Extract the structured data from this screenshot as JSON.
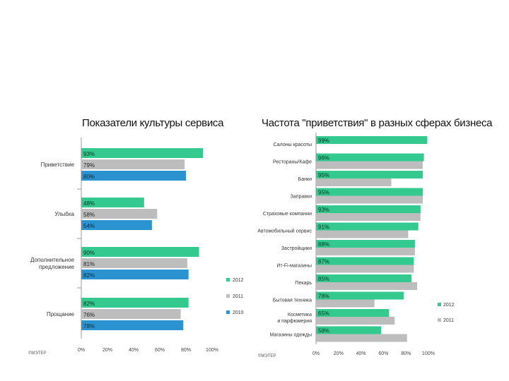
{
  "chart_data": [
    {
      "type": "bar",
      "orientation": "horizontal",
      "title": "Показатели культуры сервиса",
      "categories": [
        "Приветствие",
        "Улыбка",
        "Дополнительное предложение",
        "Прощание"
      ],
      "series": [
        {
          "name": "2012",
          "color": "#33c98f",
          "values": [
            93,
            48,
            90,
            82
          ]
        },
        {
          "name": "2011",
          "color": "#bdbdbd",
          "values": [
            79,
            58,
            81,
            76
          ]
        },
        {
          "name": "2010",
          "color": "#2b93cf",
          "values": [
            80,
            54,
            82,
            78
          ]
        }
      ],
      "value_labels": [
        [
          "93%",
          "48%",
          "90%",
          "82%"
        ],
        [
          "79%",
          "58%",
          "81%",
          "76%"
        ],
        [
          "80%",
          "54%",
          "82%",
          "78%"
        ]
      ],
      "xlim": [
        0,
        100
      ],
      "xticks": [
        "0%",
        "20%",
        "40%",
        "60%",
        "80%",
        "100%"
      ],
      "legend_position": "right",
      "grid": false,
      "source": "©МЭТЕР"
    },
    {
      "type": "bar",
      "orientation": "horizontal",
      "title": "Частота \"приветствия\" в разных сферах бизнеса",
      "categories": [
        "Салоны красоты",
        "Рестораны/Кафе",
        "Банки",
        "Заправки",
        "Страховые компании",
        "Автомобильный сервис",
        "Застройщики",
        "Ит-Fi-магазины",
        "Пекарь",
        "Бытовая техника",
        "Косметика и парфюмерия",
        "Магазины одежды"
      ],
      "series": [
        {
          "name": "2012",
          "color": "#33c98f",
          "values": [
            99,
            96,
            95,
            95,
            93,
            91,
            88,
            87,
            85,
            78,
            65,
            58
          ]
        },
        {
          "name": "2011",
          "color": "#bdbdbd",
          "values": [
            null,
            95,
            67,
            95,
            93,
            82,
            88,
            87,
            90,
            52,
            70,
            81
          ]
        }
      ],
      "value_labels": [
        "99%",
        "96%",
        "95%",
        "95%",
        "93%",
        "91%",
        "88%",
        "87%",
        "85%",
        "78%",
        "65%",
        "58%"
      ],
      "xlim": [
        0,
        100
      ],
      "xticks": [
        "0%",
        "20%",
        "40%",
        "60%",
        "80%",
        "100%"
      ],
      "legend_position": "right",
      "grid": false,
      "source": "©МЭТЕР"
    }
  ]
}
